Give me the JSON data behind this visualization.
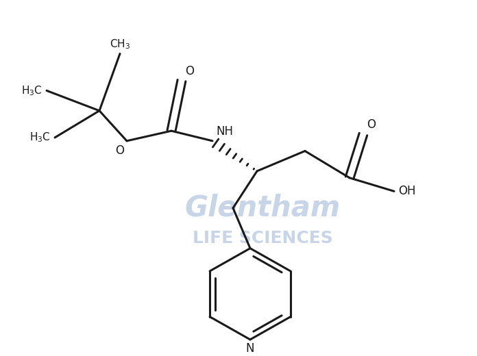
{
  "background_color": "#ffffff",
  "line_color": "#1a1a1a",
  "watermark_color": "#c8d4e8",
  "line_width": 2.2,
  "figure_width": 6.96,
  "figure_height": 5.2,
  "dpi": 100,
  "xlim": [
    0,
    696
  ],
  "ylim": [
    0,
    520
  ]
}
